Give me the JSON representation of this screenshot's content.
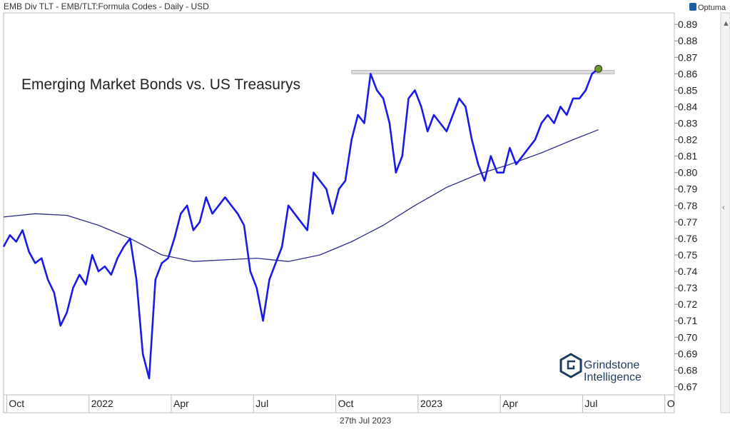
{
  "header": "EMB Div TLT - EMB/TLT:Formula Codes - Daily - USD",
  "brand": "Optuma",
  "footer_date": "27th Jul 2023",
  "watermark": {
    "line1": "Grindstone",
    "line2": "Intelligence"
  },
  "chart_data": {
    "type": "line",
    "title": "Emerging Market Bonds vs. US Treasurys",
    "xlim": [
      0,
      106
    ],
    "xticks": [
      {
        "value": 0.5,
        "label": "Oct"
      },
      {
        "value": 13.5,
        "label": "2022"
      },
      {
        "value": 26.5,
        "label": "Apr"
      },
      {
        "value": 39.5,
        "label": "Jul"
      },
      {
        "value": 52.5,
        "label": "Oct"
      },
      {
        "value": 65.5,
        "label": "2023"
      },
      {
        "value": 78.5,
        "label": "Apr"
      },
      {
        "value": 91.5,
        "label": "Jul"
      },
      {
        "value": 104.5,
        "label": "O"
      }
    ],
    "ylim": [
      0.665,
      0.897
    ],
    "yticks": [
      0.67,
      0.68,
      0.69,
      0.7,
      0.71,
      0.72,
      0.73,
      0.74,
      0.75,
      0.76,
      0.77,
      0.78,
      0.79,
      0.8,
      0.81,
      0.82,
      0.83,
      0.84,
      0.85,
      0.86,
      0.87,
      0.88,
      0.89
    ],
    "yticks_labels": [
      "0.67",
      "0.68",
      "0.69",
      "0.70",
      "0.71",
      "0.72",
      "0.73",
      "0.74",
      "0.75",
      "0.76",
      "0.77",
      "0.78",
      "0.79",
      "0.80",
      "0.81",
      "0.82",
      "0.83",
      "0.84",
      "0.85",
      "0.86",
      "0.87",
      "0.88",
      "0.89"
    ],
    "resistance": {
      "value": 0.861,
      "x": [
        55,
        96.5
      ],
      "color": "#bbbbbb"
    },
    "last_point_color": "#6a9a2a",
    "series": [
      {
        "color": "#1a1ae6",
        "x": [
          0,
          1,
          2,
          3,
          4,
          5,
          6,
          7,
          8,
          9,
          10,
          11,
          12,
          13,
          14,
          15,
          16,
          17,
          18,
          19,
          20,
          21,
          22,
          23,
          24,
          25,
          26,
          27,
          28,
          29,
          30,
          31,
          32,
          33,
          34,
          35,
          36,
          37,
          38,
          39,
          40,
          41,
          42,
          43,
          44,
          45,
          46,
          47,
          48,
          49,
          50,
          51,
          52,
          53,
          54,
          55,
          56,
          57,
          58,
          59,
          60,
          61,
          62,
          63,
          64,
          65,
          66,
          67,
          68,
          69,
          70,
          71,
          72,
          73,
          74,
          75,
          76,
          77,
          78,
          79,
          80,
          81,
          82,
          83,
          84,
          85,
          86,
          87,
          88,
          89,
          90,
          91,
          92,
          93,
          94
        ],
        "values": [
          0.755,
          0.762,
          0.758,
          0.765,
          0.752,
          0.745,
          0.748,
          0.735,
          0.727,
          0.707,
          0.715,
          0.73,
          0.738,
          0.732,
          0.75,
          0.74,
          0.743,
          0.738,
          0.748,
          0.755,
          0.76,
          0.735,
          0.69,
          0.675,
          0.735,
          0.745,
          0.748,
          0.76,
          0.775,
          0.78,
          0.765,
          0.77,
          0.785,
          0.775,
          0.78,
          0.785,
          0.78,
          0.775,
          0.768,
          0.74,
          0.73,
          0.71,
          0.735,
          0.745,
          0.755,
          0.78,
          0.775,
          0.77,
          0.765,
          0.8,
          0.795,
          0.79,
          0.775,
          0.79,
          0.795,
          0.82,
          0.835,
          0.83,
          0.86,
          0.85,
          0.845,
          0.83,
          0.8,
          0.81,
          0.845,
          0.85,
          0.84,
          0.825,
          0.835,
          0.83,
          0.825,
          0.835,
          0.845,
          0.84,
          0.82,
          0.805,
          0.795,
          0.81,
          0.8,
          0.8,
          0.815,
          0.805,
          0.81,
          0.815,
          0.82,
          0.83,
          0.835,
          0.83,
          0.84,
          0.835,
          0.845,
          0.845,
          0.85,
          0.86,
          0.863
        ]
      },
      {
        "color": "#2b2b8c",
        "x": [
          0,
          5,
          10,
          15,
          20,
          25,
          30,
          35,
          40,
          45,
          50,
          55,
          60,
          65,
          70,
          75,
          80,
          85,
          90,
          94
        ],
        "values": [
          0.773,
          0.775,
          0.774,
          0.768,
          0.76,
          0.75,
          0.746,
          0.747,
          0.748,
          0.746,
          0.75,
          0.758,
          0.768,
          0.78,
          0.791,
          0.799,
          0.805,
          0.812,
          0.82,
          0.826
        ]
      }
    ]
  }
}
